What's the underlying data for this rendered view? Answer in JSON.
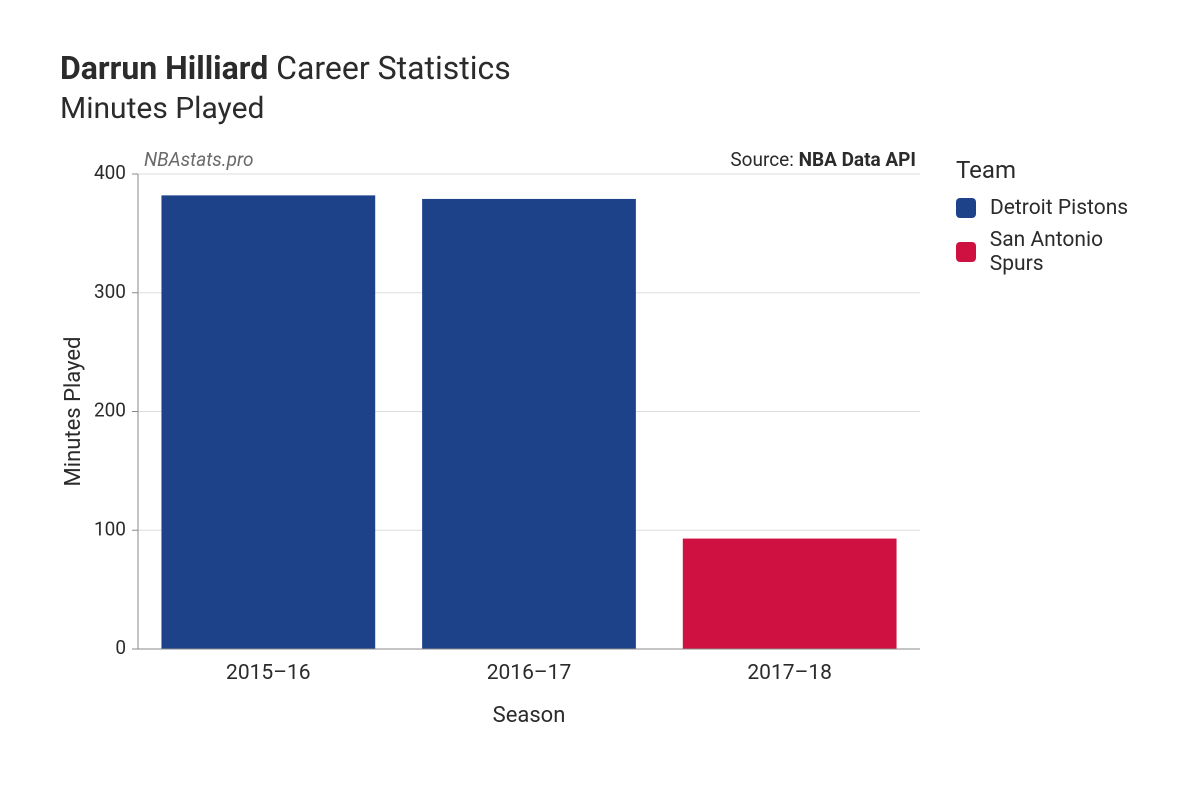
{
  "title": {
    "bold": "Darrun Hilliard",
    "rest": " Career Statistics",
    "subtitle": "Minutes Played"
  },
  "chart": {
    "type": "bar",
    "xlabel": "Season",
    "ylabel": "Minutes Played",
    "ylim": [
      0,
      400
    ],
    "ytick_step": 100,
    "yticks": [
      0,
      100,
      200,
      300,
      400
    ],
    "categories": [
      "2015–16",
      "2016–17",
      "2017–18"
    ],
    "values": [
      382,
      379,
      93
    ],
    "bar_colors": [
      "#1d428a",
      "#1d428a",
      "#ce1141"
    ],
    "bar_width": 0.82,
    "background_color": "#ffffff",
    "grid_color": "#dddddd",
    "axis_color": "#888888",
    "tick_fontsize": 19,
    "xlabel_fontsize": 22,
    "ylabel_fontsize": 22,
    "watermark": "NBAstats.pro",
    "source_prefix": "Source: ",
    "source_name": "NBA Data API"
  },
  "legend": {
    "title": "Team",
    "items": [
      {
        "label": "Detroit Pistons",
        "color": "#1d428a"
      },
      {
        "label": "San Antonio Spurs",
        "color": "#ce1141"
      }
    ]
  }
}
